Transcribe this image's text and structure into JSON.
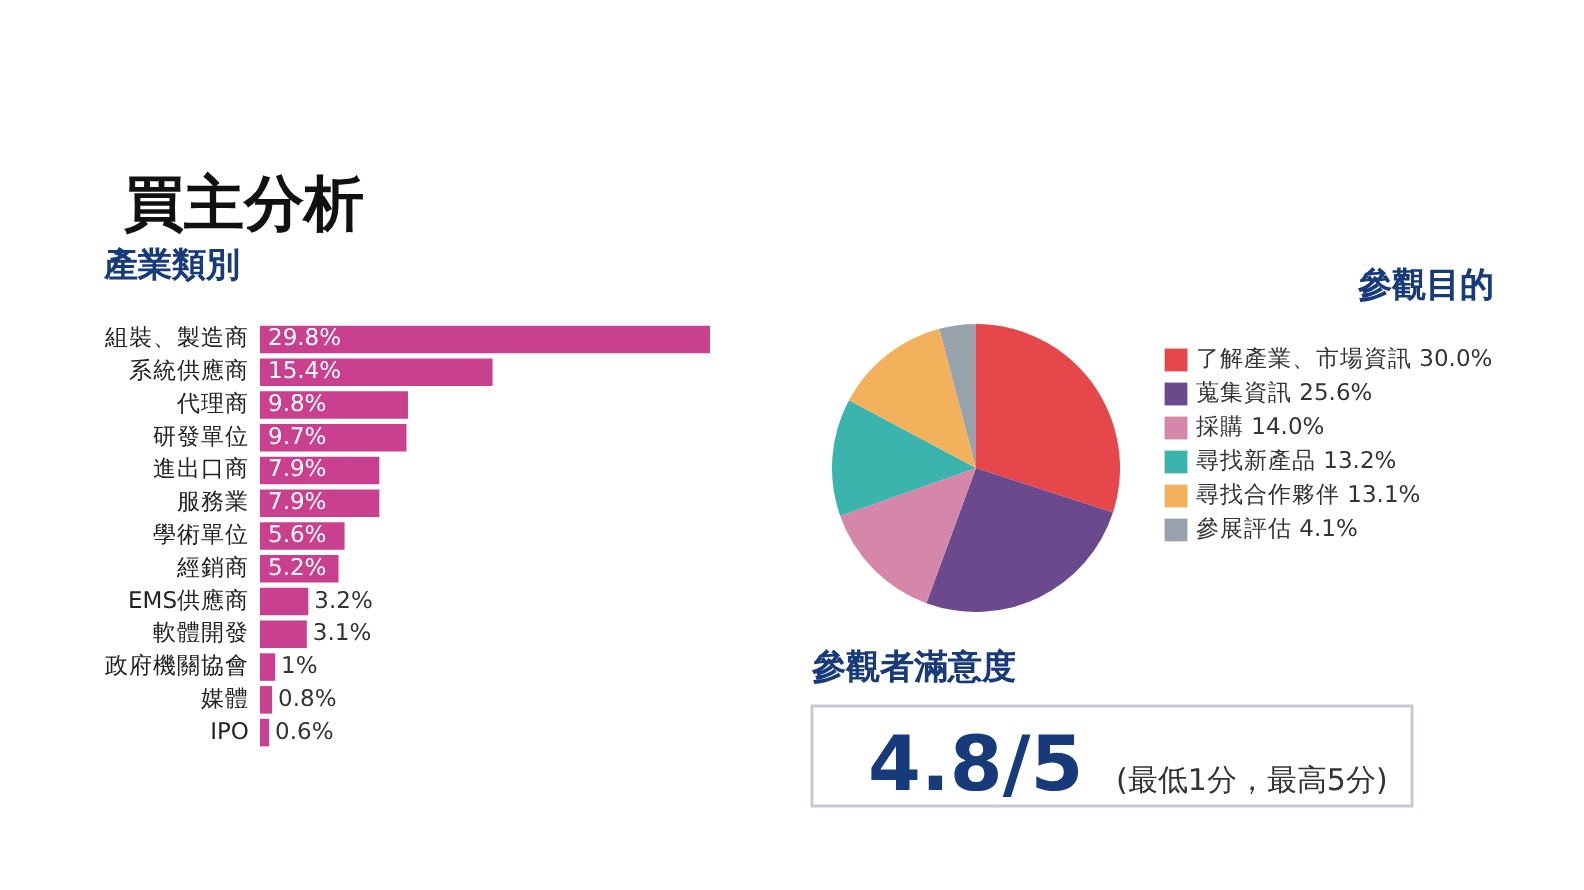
{
  "chart_data": [
    {
      "type": "other",
      "title": "買主分析"
    },
    {
      "type": "bar",
      "title": "產業類別",
      "orientation": "horizontal",
      "categories": [
        "組裝、製造商",
        "系統供應商",
        "代理商",
        "研發單位",
        "進出口商",
        "服務業",
        "學術單位",
        "經銷商",
        "EMS供應商",
        "軟體開發",
        "政府機關協會",
        "媒體",
        "IPO"
      ],
      "values": [
        29.8,
        15.4,
        9.8,
        9.7,
        7.9,
        7.9,
        5.6,
        5.2,
        3.2,
        3.1,
        1,
        0.8,
        0.6
      ],
      "value_labels": [
        "29.8%",
        "15.4%",
        "9.8%",
        "9.7%",
        "7.9%",
        "7.9%",
        "5.6%",
        "5.2%",
        "3.2%",
        "3.1%",
        "1%",
        "0.8%",
        "0.6%"
      ],
      "color": "#c9408f"
    },
    {
      "type": "pie",
      "title": "參觀目的",
      "categories": [
        "了解產業、市場資訊",
        "蒐集資訊",
        "採購",
        "尋找新產品",
        "尋找合作夥伴",
        "參展評估"
      ],
      "values": [
        30.0,
        25.6,
        14.0,
        13.2,
        13.1,
        4.1
      ],
      "value_labels": [
        "30.0%",
        "25.6%",
        "14.0%",
        "13.2%",
        "13.1%",
        "4.1%"
      ],
      "colors": [
        "#e5474b",
        "#6a4a8c",
        "#d487a8",
        "#3bb4ad",
        "#f3b15c",
        "#98a2ad"
      ],
      "legend": "right"
    },
    {
      "type": "other",
      "title": "參觀者滿意度",
      "annotations": [
        "4.8/5",
        "(最低1分，最高5分)"
      ]
    }
  ]
}
